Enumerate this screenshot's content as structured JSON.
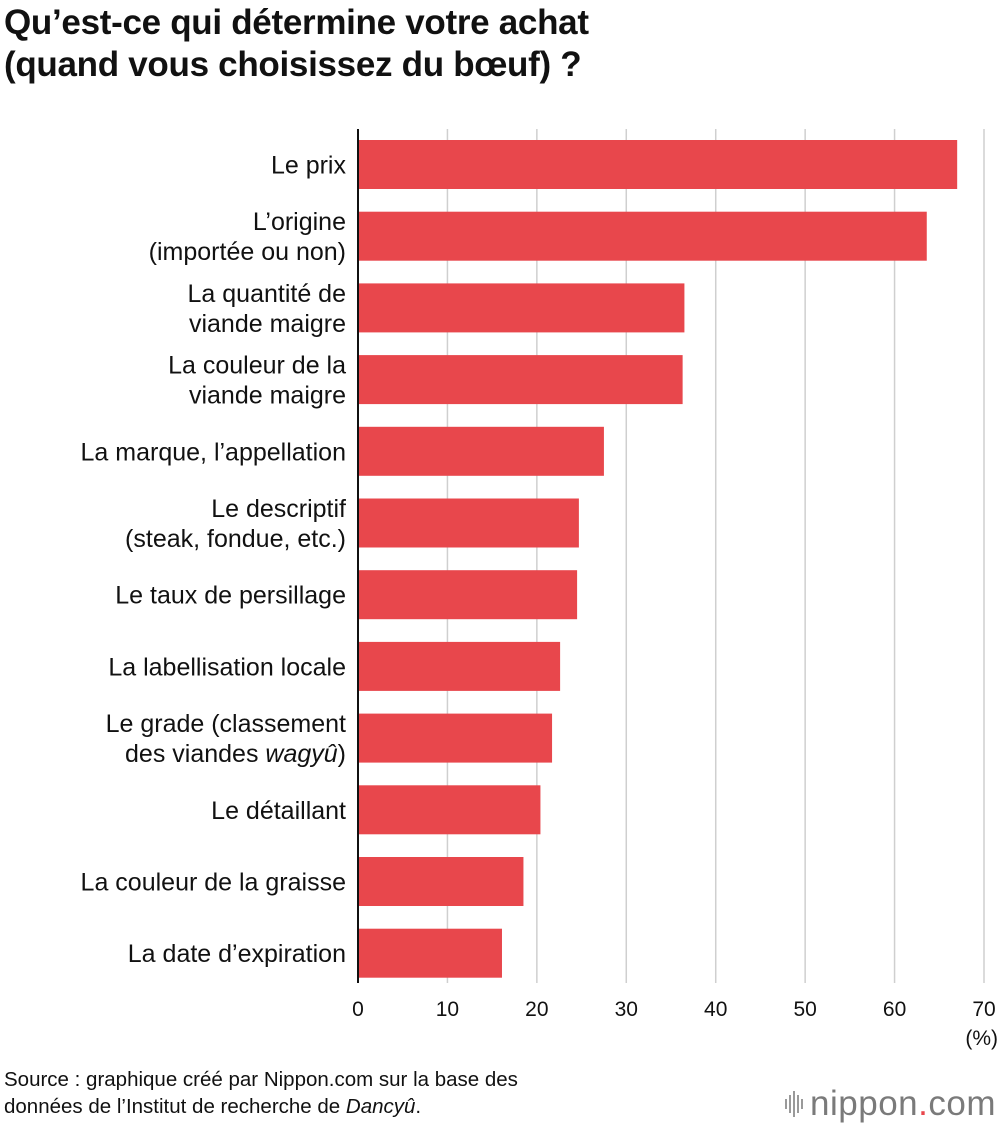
{
  "header": {
    "title_line1": "Qu’est-ce qui détermine votre achat",
    "title_line2": "(quand vous choisissez du bœuf) ?"
  },
  "chart_data": {
    "type": "bar",
    "orientation": "horizontal",
    "title": "Qu’est-ce qui détermine votre achat (quand vous choisissez du bœuf) ?",
    "categories": [
      [
        "Le prix"
      ],
      [
        "L’origine",
        "(importée ou non)"
      ],
      [
        "La quantité de",
        "viande maigre"
      ],
      [
        "La couleur de la",
        "viande maigre"
      ],
      [
        "La marque, l’appellation"
      ],
      [
        "Le descriptif",
        "(steak, fondue, etc.)"
      ],
      [
        "Le taux de persillage"
      ],
      [
        "La labellisation locale"
      ],
      [
        "Le grade (classement",
        "des viandes wagyû)"
      ],
      [
        "Le détaillant"
      ],
      [
        "La couleur de la graisse"
      ],
      [
        "La date d’expiration"
      ]
    ],
    "values": [
      67.0,
      63.6,
      36.5,
      36.3,
      27.5,
      24.7,
      24.5,
      22.6,
      21.7,
      20.4,
      18.5,
      16.1
    ],
    "xlim": [
      0,
      70
    ],
    "xticks": [
      0,
      10,
      20,
      30,
      40,
      50,
      60,
      70
    ],
    "xlabel": "(%)",
    "grid": true,
    "bar_color": "#e8474c"
  },
  "footer": {
    "source_line1": "Source : graphique créé par Nippon.com sur la base des",
    "source_line2_prefix": "données de l’Institut de recherche de ",
    "source_line2_italic": "Dancyû",
    "source_line2_suffix": "."
  },
  "brand": {
    "name": "nippon",
    "dot": ".",
    "tld": "com",
    "icon": "waveform-icon",
    "accent": "#e8474c"
  }
}
